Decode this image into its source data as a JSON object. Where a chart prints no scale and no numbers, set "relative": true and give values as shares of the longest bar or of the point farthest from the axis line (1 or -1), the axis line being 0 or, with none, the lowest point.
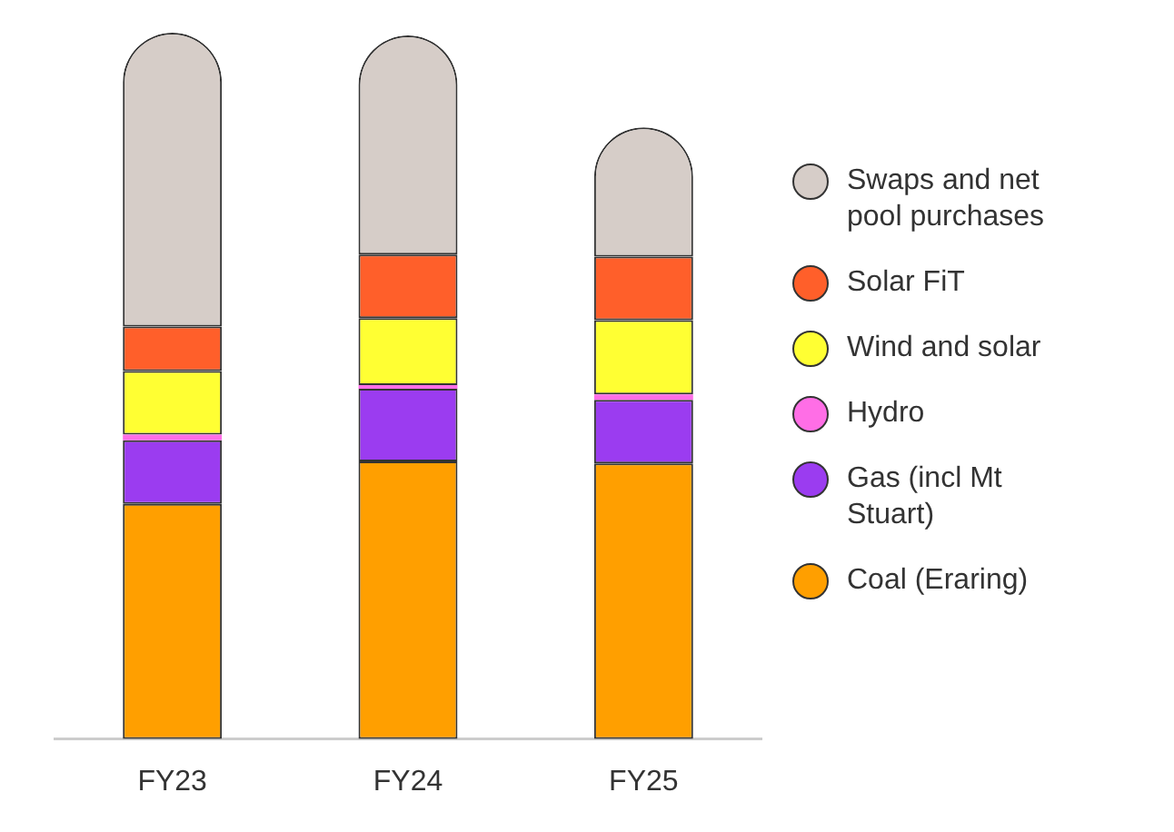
{
  "chart_data": {
    "type": "bar",
    "stacked": true,
    "relative": true,
    "legend": "right",
    "categories": [
      "FY23",
      "FY24",
      "FY25"
    ],
    "series": [
      {
        "name": "Coal (Eraring)",
        "color": "#ff9f00",
        "values": [
          0.333,
          0.393,
          0.39
        ]
      },
      {
        "name": "Gas (incl Mt Stuart)",
        "color": "#9b3cf0",
        "values": [
          0.09,
          0.103,
          0.09
        ]
      },
      {
        "name": "Hydro",
        "color": "#ff6ee6",
        "values": [
          0.008,
          0.005,
          0.008
        ]
      },
      {
        "name": "Wind and solar",
        "color": "#ffff33",
        "values": [
          0.09,
          0.095,
          0.105
        ]
      },
      {
        "name": "Solar FiT",
        "color": "#ff5f2a",
        "values": [
          0.063,
          0.09,
          0.09
        ]
      },
      {
        "name": "Swaps and net pool purchases",
        "color": "#d6cdc8",
        "values": [
          0.416,
          0.31,
          0.183
        ]
      }
    ]
  }
}
